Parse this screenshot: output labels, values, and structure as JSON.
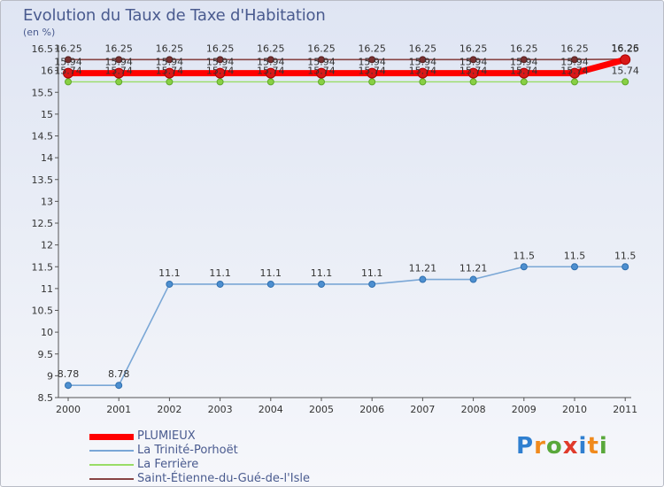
{
  "header": {
    "title": "Evolution du Taux de Taxe d'Habitation",
    "unit": "(en %)"
  },
  "logo": {
    "text": "Proxiti",
    "colors": [
      "#2f7fd0",
      "#f08a1c",
      "#59a83a",
      "#e03a2a",
      "#2f7fd0",
      "#f08a1c",
      "#59a83a"
    ]
  },
  "chart_data": {
    "type": "line",
    "title": "Evolution du Taux de Taxe d'Habitation",
    "ylabel": "(en %)",
    "xlabel": "",
    "grid": false,
    "ylim": [
      8.5,
      16.5
    ],
    "y_ticks": [
      "8.5",
      "9",
      "9.5",
      "10",
      "10.5",
      "11",
      "11.5",
      "12",
      "12.5",
      "13",
      "13.5",
      "14",
      "14.5",
      "15",
      "15.5",
      "16",
      "16.5"
    ],
    "x": [
      "2000",
      "2001",
      "2002",
      "2003",
      "2004",
      "2005",
      "2006",
      "2007",
      "2008",
      "2009",
      "2010",
      "2011"
    ],
    "series": [
      {
        "name": "PLUMIEUX",
        "color": "#ff0000",
        "values": [
          15.94,
          15.94,
          15.94,
          15.94,
          15.94,
          15.94,
          15.94,
          15.94,
          15.94,
          15.94,
          15.94,
          16.25
        ],
        "labels": [
          "15.94",
          "15.94",
          "15.94",
          "15.94",
          "15.94",
          "15.94",
          "15.94",
          "15.94",
          "15.94",
          "15.94",
          "15.94",
          "16.25"
        ]
      },
      {
        "name": "La Trinité-Porhoët",
        "color": "#7aa7d6",
        "values": [
          8.78,
          8.78,
          11.1,
          11.1,
          11.1,
          11.1,
          11.1,
          11.21,
          11.21,
          11.5,
          11.5,
          11.5
        ],
        "labels": [
          "8.78",
          "8.78",
          "11.1",
          "11.1",
          "11.1",
          "11.1",
          "11.1",
          "11.21",
          "11.21",
          "11.5",
          "11.5",
          "11.5"
        ]
      },
      {
        "name": "La Ferrière",
        "color": "#99dd66",
        "values": [
          15.74,
          15.74,
          15.74,
          15.74,
          15.74,
          15.74,
          15.74,
          15.74,
          15.74,
          15.74,
          15.74,
          15.74
        ],
        "labels": [
          "15.74",
          "15.74",
          "15.74",
          "15.74",
          "15.74",
          "15.74",
          "15.74",
          "15.74",
          "15.74",
          "15.74",
          "15.74",
          "15.74"
        ]
      },
      {
        "name": "Saint-Étienne-du-Gué-de-l'Isle",
        "color": "#884444",
        "values": [
          16.25,
          16.25,
          16.25,
          16.25,
          16.25,
          16.25,
          16.25,
          16.25,
          16.25,
          16.25,
          16.25,
          16.26
        ],
        "labels": [
          "16.25",
          "16.25",
          "16.25",
          "16.25",
          "16.25",
          "16.25",
          "16.25",
          "16.25",
          "16.25",
          "16.25",
          "16.25",
          "16.26"
        ]
      }
    ]
  }
}
